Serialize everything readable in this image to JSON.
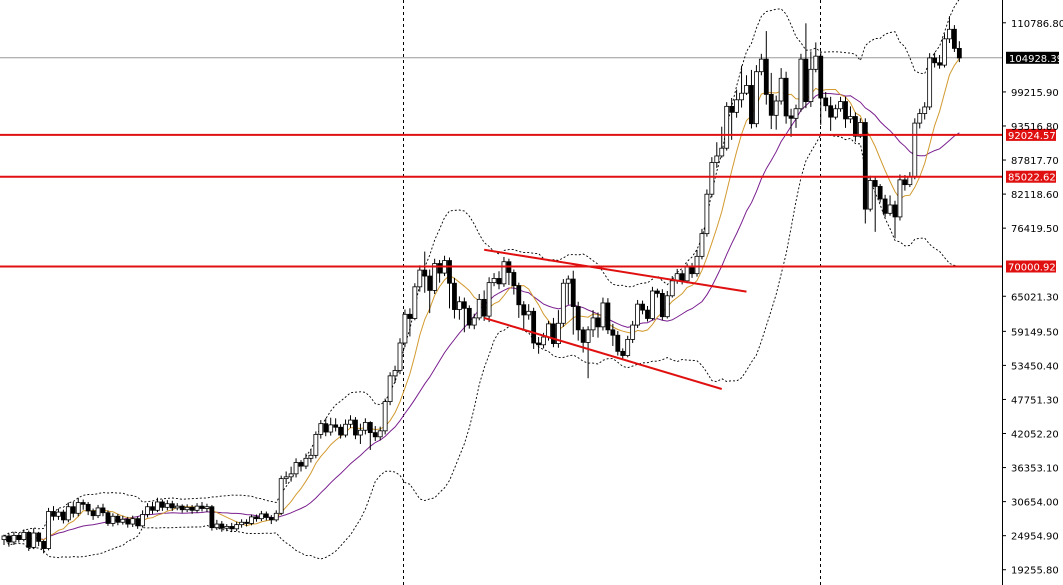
{
  "chart_data": {
    "type": "candlestick",
    "title": "",
    "xlabel": "",
    "ylabel": "",
    "ylim": [
      16700,
      114600
    ],
    "y_ticks": [
      "110786.80",
      "99215.90",
      "93516.80",
      "87817.70",
      "82118.60",
      "76419.50",
      "65021.30",
      "59149.50",
      "53450.40",
      "47751.30",
      "42052.20",
      "36353.10",
      "30654.00",
      "24954.90",
      "19255.80"
    ],
    "current_price": {
      "label": "104928.39",
      "value": 104928.39
    },
    "horizontal_levels": [
      {
        "label": "92024.57",
        "value": 92024.57
      },
      {
        "label": "85022.62",
        "value": 85022.62
      },
      {
        "label": "70000.92",
        "value": 70000.92
      }
    ],
    "candles": [
      [
        24300,
        24900,
        23400,
        25100
      ],
      [
        24900,
        23900,
        23100,
        25300
      ],
      [
        23900,
        25000,
        23400,
        25600
      ],
      [
        25000,
        24300,
        23800,
        25400
      ],
      [
        24300,
        25500,
        24000,
        26000
      ],
      [
        25500,
        23000,
        22400,
        25800
      ],
      [
        23000,
        25400,
        22700,
        26200
      ],
      [
        25400,
        24000,
        23200,
        25600
      ],
      [
        24000,
        22800,
        22000,
        24200
      ],
      [
        22800,
        29000,
        22500,
        29600
      ],
      [
        29000,
        28200,
        27500,
        29900
      ],
      [
        28200,
        28900,
        27600,
        29500
      ],
      [
        28900,
        27600,
        27000,
        29300
      ],
      [
        27600,
        29800,
        27200,
        30500
      ],
      [
        29800,
        28700,
        28000,
        30600
      ],
      [
        28700,
        30500,
        28200,
        31300
      ],
      [
        30500,
        30200,
        29300,
        31000
      ],
      [
        30200,
        29100,
        28400,
        30600
      ],
      [
        29100,
        28300,
        27600,
        29500
      ],
      [
        28300,
        29600,
        27900,
        30100
      ],
      [
        29600,
        28800,
        28200,
        30300
      ],
      [
        28800,
        27000,
        26600,
        29200
      ],
      [
        27000,
        28200,
        26500,
        28700
      ],
      [
        28200,
        27200,
        26700,
        28600
      ],
      [
        27200,
        27700,
        26800,
        28300
      ],
      [
        27700,
        26900,
        26300,
        28100
      ],
      [
        26900,
        27800,
        26400,
        28300
      ],
      [
        27800,
        26600,
        26100,
        28200
      ],
      [
        26600,
        28500,
        26300,
        29200
      ],
      [
        28500,
        29800,
        28000,
        30400
      ],
      [
        29800,
        29200,
        28600,
        30600
      ],
      [
        29200,
        30600,
        28900,
        31300
      ],
      [
        30600,
        29700,
        29100,
        31000
      ],
      [
        29700,
        30300,
        29200,
        30900
      ],
      [
        30300,
        29600,
        29100,
        30800
      ],
      [
        29600,
        29900,
        29200,
        30400
      ],
      [
        29900,
        29300,
        28800,
        30200
      ],
      [
        29300,
        29700,
        28900,
        30200
      ],
      [
        29700,
        29200,
        28600,
        30100
      ],
      [
        29200,
        29900,
        28800,
        30400
      ],
      [
        29900,
        29500,
        29000,
        30600
      ],
      [
        29500,
        29800,
        28900,
        30300
      ],
      [
        29800,
        26300,
        25800,
        30100
      ],
      [
        26300,
        26900,
        25900,
        27600
      ],
      [
        26900,
        26200,
        25600,
        27400
      ],
      [
        26200,
        26500,
        25700,
        26900
      ],
      [
        26500,
        26100,
        25600,
        27100
      ],
      [
        26100,
        26800,
        25700,
        27300
      ],
      [
        26800,
        27200,
        26300,
        27700
      ],
      [
        27200,
        27000,
        26500,
        27700
      ],
      [
        27000,
        28100,
        26700,
        28500
      ],
      [
        28100,
        27800,
        27300,
        28500
      ],
      [
        27800,
        28600,
        27400,
        29100
      ],
      [
        28600,
        28000,
        27500,
        29000
      ],
      [
        28000,
        27600,
        26900,
        28400
      ],
      [
        27600,
        28700,
        27300,
        29200
      ],
      [
        28700,
        34500,
        28400,
        35000
      ],
      [
        34500,
        34800,
        33600,
        35700
      ],
      [
        34800,
        35300,
        34000,
        36500
      ],
      [
        35300,
        37200,
        34700,
        37900
      ],
      [
        37200,
        36600,
        35700,
        37600
      ],
      [
        36600,
        37900,
        36100,
        38700
      ],
      [
        37900,
        38400,
        37200,
        39400
      ],
      [
        38400,
        41900,
        37900,
        42400
      ],
      [
        41900,
        43700,
        41200,
        44300
      ],
      [
        43700,
        42300,
        41600,
        44600
      ],
      [
        42300,
        43500,
        41700,
        44700
      ],
      [
        43500,
        43100,
        42400,
        44600
      ],
      [
        43100,
        41800,
        41200,
        43600
      ],
      [
        41800,
        43600,
        41400,
        44400
      ],
      [
        43600,
        44300,
        43000,
        45100
      ],
      [
        44300,
        41800,
        41100,
        44800
      ],
      [
        41800,
        42600,
        40300,
        43700
      ],
      [
        42600,
        43900,
        41900,
        44600
      ],
      [
        43900,
        42200,
        39300,
        44100
      ],
      [
        42200,
        41500,
        40800,
        43300
      ],
      [
        41500,
        42500,
        40900,
        43200
      ],
      [
        42500,
        47400,
        41900,
        47900
      ],
      [
        47400,
        51700,
        46800,
        52300
      ],
      [
        51700,
        52600,
        50500,
        53400
      ],
      [
        52600,
        57200,
        52000,
        58000
      ],
      [
        57200,
        62000,
        56500,
        62800
      ],
      [
        62000,
        61300,
        58300,
        63000
      ],
      [
        61300,
        66600,
        61000,
        67200
      ],
      [
        66600,
        69400,
        65800,
        70200
      ],
      [
        69400,
        68400,
        65600,
        72500
      ],
      [
        68400,
        66000,
        62200,
        69500
      ],
      [
        66000,
        70500,
        65400,
        71300
      ],
      [
        70500,
        68900,
        67300,
        71100
      ],
      [
        68900,
        71000,
        68400,
        71800
      ],
      [
        71000,
        67200,
        63000,
        71500
      ],
      [
        67200,
        62800,
        61300,
        68100
      ],
      [
        62800,
        64100,
        61100,
        65000
      ],
      [
        64100,
        63000,
        59000,
        64800
      ],
      [
        63000,
        60200,
        59600,
        63500
      ],
      [
        60200,
        61400,
        59500,
        62100
      ],
      [
        61400,
        64500,
        61000,
        65400
      ],
      [
        64500,
        61700,
        60900,
        66000
      ],
      [
        61700,
        67300,
        60700,
        68200
      ],
      [
        67300,
        68000,
        66700,
        68900
      ],
      [
        68000,
        67100,
        66200,
        69200
      ],
      [
        67100,
        70800,
        66600,
        71600
      ],
      [
        70800,
        69000,
        66900,
        71300
      ],
      [
        69000,
        66800,
        65300,
        69500
      ],
      [
        66800,
        63600,
        61400,
        67300
      ],
      [
        63600,
        61900,
        59300,
        64200
      ],
      [
        61900,
        62500,
        61100,
        63700
      ],
      [
        62500,
        57200,
        56200,
        63100
      ],
      [
        57200,
        56900,
        55400,
        58200
      ],
      [
        56900,
        58200,
        56300,
        58900
      ],
      [
        58200,
        60400,
        57600,
        60900
      ],
      [
        60400,
        57100,
        56500,
        61400
      ],
      [
        57100,
        60500,
        56400,
        62700
      ],
      [
        60500,
        67200,
        59900,
        67900
      ],
      [
        67200,
        67900,
        63600,
        68500
      ],
      [
        67900,
        63300,
        58600,
        69300
      ],
      [
        63300,
        59400,
        57600,
        64100
      ],
      [
        59400,
        57300,
        55600,
        59900
      ],
      [
        57300,
        59400,
        51300,
        60000
      ],
      [
        59400,
        61400,
        58200,
        62700
      ],
      [
        61400,
        59900,
        58100,
        62300
      ],
      [
        59900,
        63900,
        59300,
        64800
      ],
      [
        63900,
        59400,
        58700,
        64700
      ],
      [
        59400,
        58500,
        56700,
        60400
      ],
      [
        58500,
        55800,
        55100,
        59200
      ],
      [
        55800,
        55100,
        54400,
        56300
      ],
      [
        55100,
        57800,
        54800,
        58400
      ],
      [
        57800,
        60200,
        57200,
        60900
      ],
      [
        60200,
        63700,
        59700,
        64400
      ],
      [
        63700,
        62700,
        62000,
        64300
      ],
      [
        62700,
        61300,
        60800,
        63400
      ],
      [
        61300,
        65900,
        61000,
        66600
      ],
      [
        65900,
        65500,
        64800,
        66300
      ],
      [
        65500,
        61600,
        61000,
        66200
      ],
      [
        61600,
        65100,
        61300,
        65900
      ],
      [
        65100,
        67600,
        64800,
        68400
      ],
      [
        67600,
        68800,
        67100,
        69600
      ],
      [
        68800,
        67600,
        67000,
        69400
      ],
      [
        67600,
        69900,
        67200,
        70500
      ],
      [
        69900,
        68800,
        68100,
        70600
      ],
      [
        68800,
        71700,
        68300,
        72800
      ],
      [
        71700,
        75500,
        71200,
        76300
      ],
      [
        75500,
        82100,
        75000,
        82900
      ],
      [
        82100,
        87400,
        81600,
        88300
      ],
      [
        87400,
        88500,
        86500,
        90800
      ],
      [
        88500,
        89800,
        88200,
        93400
      ],
      [
        89800,
        96800,
        89400,
        97500
      ],
      [
        96800,
        95800,
        91200,
        98200
      ],
      [
        95800,
        97900,
        94900,
        99600
      ],
      [
        97900,
        99000,
        96600,
        103600
      ],
      [
        99000,
        100300,
        98700,
        102000
      ],
      [
        100300,
        93900,
        93100,
        102900
      ],
      [
        93900,
        102600,
        93300,
        103700
      ],
      [
        102600,
        104700,
        102000,
        105600
      ],
      [
        104700,
        98800,
        97100,
        109400
      ],
      [
        98800,
        95300,
        93000,
        102400
      ],
      [
        95300,
        97700,
        92900,
        98600
      ],
      [
        97700,
        101500,
        97100,
        103200
      ],
      [
        101500,
        95200,
        93900,
        102600
      ],
      [
        95200,
        94800,
        91700,
        96400
      ],
      [
        94800,
        96400,
        93200,
        97100
      ],
      [
        96400,
        104700,
        95900,
        105600
      ],
      [
        104700,
        97600,
        96500,
        110700
      ],
      [
        97600,
        103000,
        96700,
        106000
      ],
      [
        103000,
        105200,
        102500,
        107500
      ],
      [
        105200,
        98200,
        93700,
        106000
      ],
      [
        98200,
        96900,
        96000,
        99200
      ],
      [
        96900,
        95000,
        92700,
        98400
      ],
      [
        95000,
        96400,
        94600,
        97100
      ],
      [
        96400,
        97600,
        95900,
        98400
      ],
      [
        97600,
        94700,
        93200,
        98400
      ],
      [
        94700,
        95100,
        94000,
        96800
      ],
      [
        95100,
        91800,
        90900,
        95800
      ],
      [
        91800,
        94100,
        91500,
        94800
      ],
      [
        94100,
        79600,
        77200,
        94800
      ],
      [
        79600,
        84400,
        79200,
        85200
      ],
      [
        84400,
        83400,
        75800,
        85100
      ],
      [
        83400,
        81300,
        80700,
        83800
      ],
      [
        81300,
        78900,
        78200,
        82000
      ],
      [
        78900,
        80300,
        78500,
        81900
      ],
      [
        80300,
        78300,
        74700,
        81000
      ],
      [
        78300,
        84500,
        77700,
        85400
      ],
      [
        84500,
        83700,
        82700,
        85300
      ],
      [
        83700,
        85000,
        83300,
        85800
      ],
      [
        85000,
        94000,
        84600,
        94800
      ],
      [
        94000,
        95600,
        93100,
        96400
      ],
      [
        95600,
        96700,
        94600,
        97500
      ],
      [
        96700,
        104900,
        96200,
        105700
      ],
      [
        104900,
        104100,
        103300,
        105800
      ],
      [
        104100,
        103700,
        103100,
        105400
      ],
      [
        103700,
        108100,
        103300,
        109000
      ],
      [
        108100,
        109700,
        107400,
        111900
      ],
      [
        109700,
        106500,
        105900,
        110400
      ],
      [
        106500,
        104900,
        104200,
        107700
      ]
    ]
  }
}
